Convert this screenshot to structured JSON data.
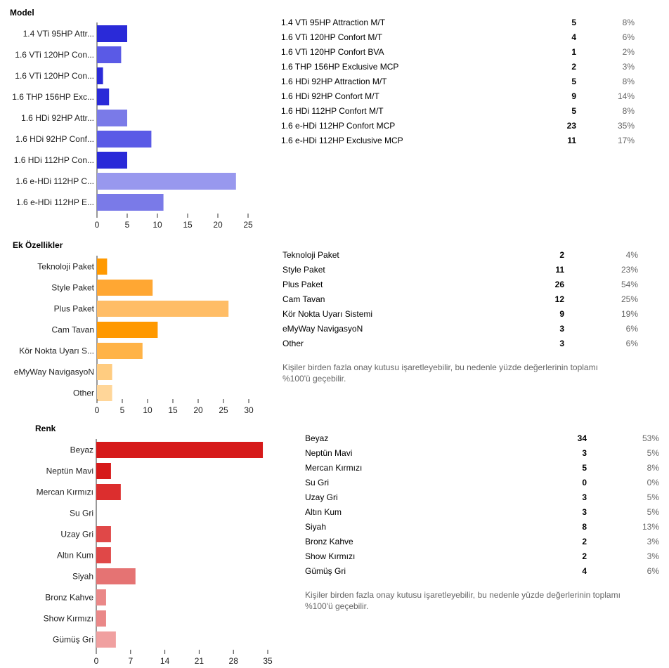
{
  "sections": [
    {
      "title": "Model",
      "chart_data": {
        "type": "bar",
        "orientation": "horizontal",
        "categories": [
          "1.4 VTi 95HP Attr...",
          "1.6 VTi 120HP Con...",
          "1.6 VTi 120HP Con...",
          "1.6 THP 156HP Exc...",
          "1.6 HDi 92HP Attr...",
          "1.6 HDi 92HP Conf...",
          "1.6 HDi 112HP Con...",
          "1.6 e-HDi 112HP C...",
          "1.6 e-HDi 112HP E..."
        ],
        "values": [
          5,
          4,
          1,
          2,
          5,
          9,
          5,
          23,
          11
        ],
        "colors": [
          "#2a2ad8",
          "#5a5ae6",
          "#2a2ad8",
          "#2a2ad8",
          "#7a7ae8",
          "#5a5ae6",
          "#2a2ad8",
          "#9898ee",
          "#7a7ae8"
        ],
        "xlim": [
          0,
          25
        ],
        "xticks": [
          0,
          5,
          10,
          15,
          20,
          25
        ],
        "grid": false
      },
      "table": [
        {
          "label": "1.4 VTi 95HP Attraction M/T",
          "count": "5",
          "pct": "8%"
        },
        {
          "label": "1.6 VTi 120HP Confort M/T",
          "count": "4",
          "pct": "6%"
        },
        {
          "label": "1.6 VTi 120HP Confort BVA",
          "count": "1",
          "pct": "2%"
        },
        {
          "label": "1.6 THP 156HP Exclusive MCP",
          "count": "2",
          "pct": "3%"
        },
        {
          "label": "1.6 HDi 92HP Attraction M/T",
          "count": "5",
          "pct": "8%"
        },
        {
          "label": "1.6 HDi 92HP Confort M/T",
          "count": "9",
          "pct": "14%"
        },
        {
          "label": "1.6 HDi 112HP Confort M/T",
          "count": "5",
          "pct": "8%"
        },
        {
          "label": "1.6 e-HDi 112HP Confort MCP",
          "count": "23",
          "pct": "35%"
        },
        {
          "label": "1.6 e-HDi 112HP Exclusive MCP",
          "count": "11",
          "pct": "17%"
        }
      ],
      "note": ""
    },
    {
      "title": "Ek Özellikler",
      "chart_data": {
        "type": "bar",
        "orientation": "horizontal",
        "categories": [
          "Teknoloji Paket",
          "Style Paket",
          "Plus Paket",
          "Cam Tavan",
          "Kör Nokta Uyarı S...",
          "eMyWay NavigasyoN",
          "Other"
        ],
        "values": [
          2,
          11,
          26,
          12,
          9,
          3,
          3
        ],
        "colors": [
          "#ff9900",
          "#ffa733",
          "#ffbd66",
          "#ff9900",
          "#ffb347",
          "#ffcc80",
          "#ffd699"
        ],
        "xlim": [
          0,
          30
        ],
        "xticks": [
          0,
          5,
          10,
          15,
          20,
          25,
          30
        ],
        "grid": false
      },
      "table": [
        {
          "label": "Teknoloji Paket",
          "count": "2",
          "pct": "4%"
        },
        {
          "label": "Style Paket",
          "count": "11",
          "pct": "23%"
        },
        {
          "label": "Plus Paket",
          "count": "26",
          "pct": "54%"
        },
        {
          "label": "Cam Tavan",
          "count": "12",
          "pct": "25%"
        },
        {
          "label": "Kör Nokta Uyarı Sistemi",
          "count": "9",
          "pct": "19%"
        },
        {
          "label": "eMyWay NavigasyoN",
          "count": "3",
          "pct": "6%"
        },
        {
          "label": "Other",
          "count": "3",
          "pct": "6%"
        }
      ],
      "note": "Kişiler birden fazla onay kutusu işaretleyebilir, bu nedenle yüzde değerlerinin toplamı %100'ü geçebilir."
    },
    {
      "title": "Renk",
      "chart_data": {
        "type": "bar",
        "orientation": "horizontal",
        "categories": [
          "Beyaz",
          "Neptün Mavi",
          "Mercan Kırmızı",
          "Su Gri",
          "Uzay Gri",
          "Altın Kum",
          "Siyah",
          "Bronz Kahve",
          "Show Kırmızı",
          "Gümüş Gri"
        ],
        "values": [
          34,
          3,
          5,
          0,
          3,
          3,
          8,
          2,
          2,
          4
        ],
        "colors": [
          "#d61a1a",
          "#d61a1a",
          "#dc2e2e",
          "#dc2e2e",
          "#e04848",
          "#e04848",
          "#e57373",
          "#ea8888",
          "#ea8888",
          "#f0a0a0"
        ],
        "xlim": [
          0,
          35
        ],
        "xticks": [
          0,
          7,
          14,
          21,
          28,
          35
        ],
        "grid": false
      },
      "table": [
        {
          "label": "Beyaz",
          "count": "34",
          "pct": "53%"
        },
        {
          "label": "Neptün Mavi",
          "count": "3",
          "pct": "5%"
        },
        {
          "label": "Mercan Kırmızı",
          "count": "5",
          "pct": "8%"
        },
        {
          "label": "Su Gri",
          "count": "0",
          "pct": "0%"
        },
        {
          "label": "Uzay Gri",
          "count": "3",
          "pct": "5%"
        },
        {
          "label": "Altın Kum",
          "count": "3",
          "pct": "5%"
        },
        {
          "label": "Siyah",
          "count": "8",
          "pct": "13%"
        },
        {
          "label": "Bronz Kahve",
          "count": "2",
          "pct": "3%"
        },
        {
          "label": "Show Kırmızı",
          "count": "2",
          "pct": "3%"
        },
        {
          "label": "Gümüş Gri",
          "count": "4",
          "pct": "6%"
        }
      ],
      "note": "Kişiler birden fazla onay kutusu işaretleyebilir, bu nedenle yüzde değerlerinin toplamı %100'ü geçebilir."
    }
  ]
}
